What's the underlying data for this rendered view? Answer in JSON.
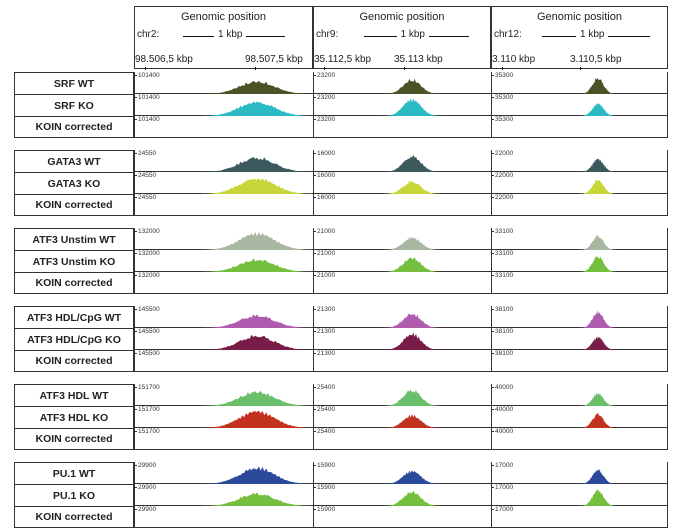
{
  "panels": [
    {
      "title": "Genomic position",
      "chrom": "chr2:",
      "scale": "1 kbp",
      "ticks": [
        "98.506,5 kbp",
        "98.507,5 kbp"
      ]
    },
    {
      "title": "Genomic position",
      "chrom": "chr9:",
      "scale": "1 kbp",
      "ticks": [
        "35.112,5 kbp",
        "35.113 kbp"
      ]
    },
    {
      "title": "Genomic position",
      "chrom": "chr12:",
      "scale": "1 kbp",
      "ticks": [
        "3.110 kbp",
        "3.110,5 kbp"
      ]
    }
  ],
  "groups": [
    {
      "rows": [
        {
          "label": "SRF WT",
          "color": "#4a5226",
          "ranges": [
            "101400",
            "23200",
            "35300"
          ]
        },
        {
          "label": "SRF KO",
          "color": "#2bbac4",
          "ranges": [
            "101400",
            "23200",
            "35300"
          ]
        },
        {
          "label": "KOIN corrected",
          "color": "",
          "ranges": [
            "101400",
            "23200",
            "35300"
          ]
        }
      ]
    },
    {
      "rows": [
        {
          "label": "GATA3 WT",
          "color": "#3c5a5e",
          "ranges": [
            "24550",
            "16000",
            "22000"
          ]
        },
        {
          "label": "GATA3 KO",
          "color": "#c9d63a",
          "ranges": [
            "24550",
            "16000",
            "22000"
          ]
        },
        {
          "label": "KOIN corrected",
          "color": "",
          "ranges": [
            "24550",
            "16000",
            "22000"
          ]
        }
      ]
    },
    {
      "rows": [
        {
          "label": "ATF3 Unstim WT",
          "color": "#a9b7a2",
          "ranges": [
            "132000",
            "21000",
            "33100"
          ]
        },
        {
          "label": "ATF3 Unstim KO",
          "color": "#74c03e",
          "ranges": [
            "132000",
            "21000",
            "33100"
          ]
        },
        {
          "label": "KOIN corrected",
          "color": "",
          "ranges": [
            "132000",
            "21000",
            "33100"
          ]
        }
      ]
    },
    {
      "rows": [
        {
          "label": "ATF3 HDL/CpG WT",
          "color": "#b05cae",
          "ranges": [
            "145500",
            "21300",
            "38100"
          ]
        },
        {
          "label": "ATF3 HDL/CpG KO",
          "color": "#7a1c48",
          "ranges": [
            "145500",
            "21300",
            "38100"
          ]
        },
        {
          "label": "KOIN corrected",
          "color": "",
          "ranges": [
            "145500",
            "21300",
            "38100"
          ]
        }
      ]
    },
    {
      "rows": [
        {
          "label": "ATF3 HDL WT",
          "color": "#6cbf6a",
          "ranges": [
            "151700",
            "25400",
            "40000"
          ]
        },
        {
          "label": "ATF3 HDL KO",
          "color": "#c2321f",
          "ranges": [
            "151700",
            "25400",
            "40000"
          ]
        },
        {
          "label": "KOIN corrected",
          "color": "",
          "ranges": [
            "151700",
            "25400",
            "40000"
          ]
        }
      ]
    },
    {
      "rows": [
        {
          "label": "PU.1 WT",
          "color": "#2c4a9c",
          "ranges": [
            "29900",
            "15900",
            "17000"
          ]
        },
        {
          "label": "PU.1 KO",
          "color": "#74c03e",
          "ranges": [
            "29900",
            "15900",
            "17000"
          ]
        },
        {
          "label": "KOIN corrected",
          "color": "",
          "ranges": [
            "29900",
            "15900",
            "17000"
          ]
        }
      ]
    }
  ]
}
